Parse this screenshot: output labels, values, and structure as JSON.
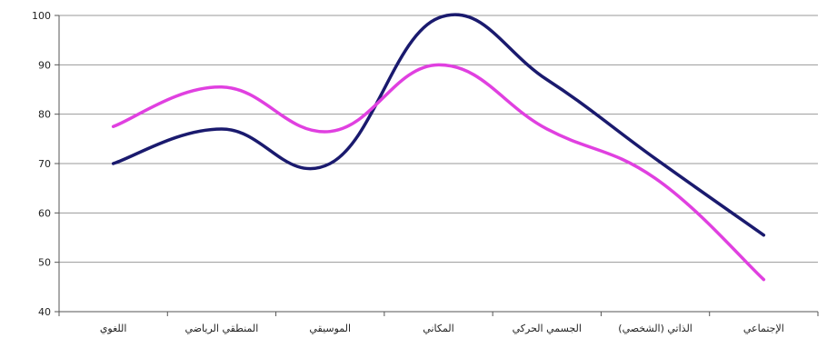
{
  "chart_data": {
    "type": "line",
    "title": "",
    "xlabel": "",
    "ylabel": "",
    "categories": [
      "اللغوي",
      "المنطقي الرياضي",
      "الموسيقي",
      "المكاني",
      "الجسمي الحركي",
      "الذاتي (الشخصي)",
      "الإجتماعي"
    ],
    "ylim": [
      40,
      100
    ],
    "yticks": [
      40,
      50,
      60,
      70,
      80,
      90,
      100
    ],
    "grid": true,
    "legend": "none",
    "series": [
      {
        "color": "#1a1a6e",
        "values": [
          70,
          77,
          70,
          99.5,
          87,
          71,
          55.5
        ]
      },
      {
        "color": "#e040e0",
        "values": [
          77.5,
          85.5,
          76.5,
          90,
          77,
          67,
          46.5
        ]
      }
    ]
  }
}
